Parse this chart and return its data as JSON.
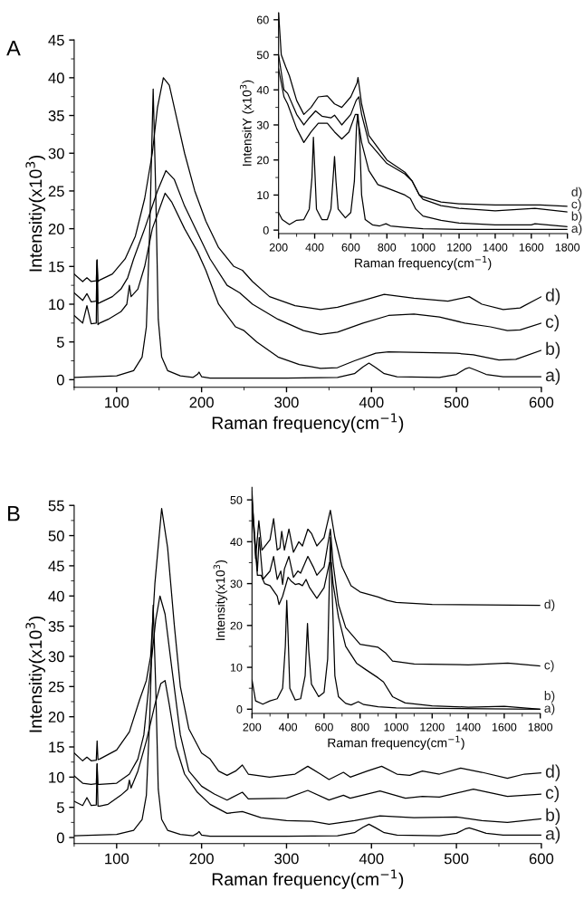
{
  "chart_data": [
    {
      "type": "line",
      "title": "A",
      "xlabel": "Raman frequency(cm$^{−1}$)",
      "ylabel": "Intensitiy(x10$^{3}$)",
      "xlim": [
        50,
        600
      ],
      "xticks": [
        100,
        200,
        300,
        400,
        500,
        600
      ],
      "ylim": [
        -1,
        45
      ],
      "yticks": [
        0,
        5,
        10,
        15,
        20,
        25,
        30,
        35,
        40,
        45
      ],
      "grid": false,
      "legend": false,
      "series": [
        {
          "name": "a)",
          "color": "#000000",
          "x": [
            50,
            100,
            120,
            130,
            135,
            139,
            143,
            146,
            149,
            153,
            160,
            175,
            190,
            195,
            197,
            200,
            210,
            300,
            360,
            380,
            390,
            397,
            405,
            415,
            430,
            480,
            500,
            510,
            515,
            522,
            535,
            555,
            600
          ],
          "values": [
            0.3,
            0.5,
            1.2,
            3,
            7,
            20,
            38.5,
            25,
            8,
            3,
            1.2,
            0.5,
            0.3,
            0.7,
            1.0,
            0.4,
            0.2,
            0.2,
            0.3,
            0.8,
            1.7,
            2.2,
            1.6,
            0.8,
            0.4,
            0.3,
            0.7,
            1.4,
            1.6,
            1.3,
            0.7,
            0.4,
            0.4
          ]
        },
        {
          "name": "b)",
          "color": "#000000",
          "x": [
            50,
            60,
            65,
            70,
            76,
            77,
            78,
            80,
            90,
            105,
            112,
            115,
            117,
            125,
            133,
            142,
            157,
            165,
            180,
            195,
            205,
            220,
            240,
            250,
            265,
            290,
            315,
            340,
            360,
            380,
            405,
            420,
            460,
            500,
            520,
            550,
            570,
            600
          ],
          "values": [
            8.5,
            7.5,
            9.8,
            7.4,
            7.5,
            15.8,
            7.3,
            7.5,
            8,
            9,
            10,
            12.5,
            11,
            12,
            15,
            20,
            24.7,
            23.5,
            20,
            17,
            14.5,
            10,
            7,
            6.5,
            5,
            3,
            2,
            1.5,
            1.6,
            2.5,
            3.5,
            3.7,
            3.6,
            3.5,
            3.3,
            2.6,
            2.7,
            3.9
          ]
        },
        {
          "name": "c)",
          "color": "#000000",
          "x": [
            50,
            60,
            65,
            70,
            76,
            77,
            78,
            80,
            95,
            105,
            113,
            120,
            133,
            148,
            158,
            168,
            180,
            195,
            210,
            230,
            245,
            260,
            290,
            320,
            340,
            360,
            390,
            420,
            450,
            480,
            510,
            540,
            560,
            575,
            600
          ],
          "values": [
            11.5,
            10.5,
            11.4,
            10.3,
            10.4,
            15.8,
            10.1,
            10.2,
            11,
            12,
            13.5,
            16,
            20,
            25,
            27.7,
            26.5,
            23,
            19.5,
            16,
            12.5,
            11.5,
            10,
            8,
            6.5,
            6,
            6.3,
            7.5,
            8.5,
            8.7,
            8.3,
            7.5,
            7,
            6.5,
            6.6,
            7.5
          ]
        },
        {
          "name": "d)",
          "color": "#000000",
          "x": [
            50,
            60,
            65,
            70,
            76,
            77,
            78,
            80,
            95,
            110,
            122,
            133,
            142,
            148,
            155,
            162,
            170,
            180,
            192,
            205,
            220,
            238,
            248,
            260,
            280,
            310,
            340,
            360,
            390,
            415,
            450,
            490,
            515,
            530,
            555,
            575,
            600
          ],
          "values": [
            14,
            13,
            13.5,
            13,
            13.1,
            15.9,
            13,
            13.2,
            14,
            16,
            19,
            24,
            30,
            36,
            40,
            39,
            35,
            30,
            25,
            21,
            17.5,
            15,
            14.5,
            13,
            11,
            9.8,
            9.3,
            9.6,
            10.5,
            11.3,
            10.8,
            10.4,
            11,
            10,
            9.3,
            9.5,
            11
          ]
        }
      ]
    },
    {
      "type": "line",
      "xlabel": "Raman frequency(cm$^{−1}$)",
      "ylabel": "IntensitY (x10$^{3}$)",
      "xlim": [
        200,
        1800
      ],
      "xticks": [
        200,
        400,
        600,
        800,
        1000,
        1200,
        1400,
        1600,
        1800
      ],
      "ylim": [
        -1,
        62
      ],
      "yticks": [
        0,
        10,
        20,
        30,
        40,
        50,
        60
      ],
      "grid": false,
      "legend": false,
      "series": [
        {
          "name": "a)",
          "color": "#000000",
          "x": [
            200,
            220,
            260,
            300,
            340,
            370,
            385,
            393,
            400,
            410,
            440,
            470,
            490,
            505,
            510,
            518,
            530,
            570,
            600,
            620,
            632,
            640,
            650,
            660,
            680,
            720,
            760,
            795,
            820,
            900,
            1000,
            1200,
            1800
          ],
          "values": [
            5,
            3,
            1.6,
            2.8,
            3,
            6,
            15,
            26.5,
            18,
            6,
            3,
            3,
            6,
            17,
            21,
            14,
            6,
            3.5,
            5,
            14,
            30,
            33,
            25,
            10,
            3,
            1.5,
            1.2,
            1.8,
            1.2,
            0.8,
            0.4,
            0.2,
            0.2
          ]
        },
        {
          "name": "b)",
          "color": "#000000",
          "x": [
            200,
            230,
            250,
            300,
            340,
            380,
            420,
            470,
            510,
            550,
            590,
            625,
            635,
            660,
            700,
            750,
            800,
            900,
            930,
            960,
            1000,
            1100,
            1200,
            1400,
            1600,
            1620,
            1800
          ],
          "values": [
            46,
            38,
            36,
            29,
            25,
            28,
            30.5,
            30.5,
            28,
            26,
            28,
            33,
            33,
            25,
            17,
            13,
            12,
            10,
            9,
            6,
            4,
            2.8,
            2,
            1.5,
            1.5,
            1.8,
            1.0
          ]
        },
        {
          "name": "c)",
          "color": "#000000",
          "x": [
            200,
            230,
            250,
            300,
            340,
            370,
            405,
            440,
            490,
            510,
            550,
            600,
            630,
            645,
            660,
            700,
            800,
            900,
            940,
            980,
            1000,
            1100,
            1200,
            1400,
            1620,
            1800
          ],
          "values": [
            50,
            40,
            39,
            33,
            30,
            32,
            34,
            32.5,
            32,
            32.8,
            30,
            33,
            37,
            38,
            33,
            25,
            19,
            16,
            14,
            10,
            8.8,
            7,
            6.2,
            5.5,
            6.2,
            5.2
          ]
        },
        {
          "name": "d)",
          "color": "#000000",
          "x": [
            200,
            215,
            240,
            260,
            300,
            340,
            380,
            420,
            470,
            510,
            550,
            600,
            635,
            640,
            660,
            700,
            800,
            900,
            940,
            980,
            1000,
            1100,
            1200,
            1400,
            1650,
            1800
          ],
          "values": [
            62,
            50,
            46.5,
            44,
            37,
            33,
            35,
            38,
            38.3,
            36,
            35,
            38,
            42,
            43.5,
            36,
            27,
            20,
            16.5,
            14,
            10,
            9.5,
            8,
            7.5,
            7.2,
            7.2,
            6.8
          ]
        }
      ]
    },
    {
      "type": "line",
      "title": "B",
      "xlabel": "Raman frequency(cm$^{−1}$)",
      "ylabel": "Intensitiy(x10$^{3}$)",
      "xlim": [
        50,
        600
      ],
      "xticks": [
        100,
        200,
        300,
        400,
        500,
        600
      ],
      "ylim": [
        -1,
        55
      ],
      "yticks": [
        0,
        5,
        10,
        15,
        20,
        25,
        30,
        35,
        40,
        45,
        50,
        55
      ],
      "grid": false,
      "legend": false,
      "series": [
        {
          "name": "a)",
          "color": "#000000",
          "x": [
            50,
            100,
            120,
            130,
            135,
            139,
            143,
            146,
            149,
            153,
            160,
            175,
            190,
            195,
            197,
            200,
            210,
            300,
            360,
            380,
            390,
            397,
            405,
            415,
            430,
            480,
            500,
            510,
            515,
            522,
            535,
            555,
            600
          ],
          "values": [
            0.3,
            0.5,
            1.2,
            3,
            7,
            20,
            38.5,
            25,
            8,
            3,
            1.2,
            0.5,
            0.3,
            0.7,
            1.0,
            0.4,
            0.2,
            0.2,
            0.3,
            0.8,
            1.7,
            2.2,
            1.6,
            0.8,
            0.4,
            0.3,
            0.7,
            1.4,
            1.6,
            1.3,
            0.7,
            0.4,
            0.4
          ]
        },
        {
          "name": "b)",
          "color": "#000000",
          "x": [
            50,
            60,
            65,
            70,
            76,
            77,
            78,
            80,
            90,
            105,
            113,
            115,
            117,
            125,
            135,
            145,
            152,
            157,
            162,
            170,
            180,
            195,
            210,
            230,
            248,
            270,
            300,
            330,
            350,
            380,
            410,
            450,
            500,
            530,
            560,
            600
          ],
          "values": [
            6,
            5.3,
            6.6,
            5.3,
            5.4,
            12.2,
            5.2,
            5.2,
            5.5,
            7,
            8,
            9.5,
            8.2,
            11,
            16,
            22,
            25.5,
            26,
            22,
            15,
            10.5,
            7.5,
            5.5,
            4,
            4.3,
            3.3,
            2.8,
            2.7,
            2.2,
            2.8,
            3.6,
            3.3,
            3.4,
            2.8,
            2.5,
            3.1
          ]
        },
        {
          "name": "c)",
          "color": "#000000",
          "x": [
            50,
            60,
            70,
            76,
            77,
            78,
            80,
            100,
            115,
            125,
            132,
            140,
            146,
            151,
            157,
            165,
            175,
            185,
            200,
            215,
            230,
            248,
            255,
            300,
            325,
            350,
            367,
            375,
            410,
            440,
            460,
            480,
            520,
            560,
            600
          ],
          "values": [
            10.2,
            9,
            8.8,
            8.9,
            12.2,
            8.8,
            8.8,
            9,
            10.5,
            13,
            17,
            28,
            36,
            40,
            37,
            28,
            17,
            11,
            8.5,
            7.2,
            6.2,
            7.5,
            6.4,
            6.5,
            7.8,
            6.2,
            7,
            6.5,
            7.7,
            6.5,
            6.8,
            6.7,
            8,
            6.8,
            7.2
          ]
        },
        {
          "name": "d)",
          "color": "#000000",
          "x": [
            50,
            60,
            65,
            70,
            76,
            77,
            78,
            80,
            100,
            115,
            127,
            135,
            140,
            145,
            153,
            160,
            168,
            175,
            185,
            200,
            210,
            220,
            230,
            240,
            248,
            255,
            280,
            310,
            325,
            340,
            350,
            367,
            375,
            395,
            412,
            430,
            445,
            460,
            480,
            505,
            530,
            560,
            580,
            600
          ],
          "values": [
            14,
            12.7,
            13.3,
            12.7,
            12.8,
            16,
            12.9,
            13,
            14.5,
            17.5,
            22.8,
            26,
            30,
            42,
            54.5,
            48,
            35,
            25,
            18,
            14,
            13,
            11,
            10.3,
            11,
            12,
            10.5,
            10,
            10.5,
            11.8,
            10.5,
            9.6,
            10.8,
            10,
            11,
            11.8,
            10.5,
            10.3,
            11,
            10.5,
            11.5,
            10.8,
            9.8,
            10.5,
            10.7
          ]
        }
      ]
    },
    {
      "type": "line",
      "xlabel": "Raman frequency(cm$^{−1}$)",
      "ylabel": "Intensity(x10$^{3}$)",
      "xlim": [
        200,
        1800
      ],
      "xticks": [
        200,
        400,
        600,
        800,
        1000,
        1200,
        1400,
        1600,
        1800
      ],
      "ylim": [
        -1,
        53
      ],
      "yticks": [
        0,
        10,
        20,
        30,
        40,
        50
      ],
      "grid": false,
      "legend": false,
      "series": [
        {
          "name": "a)",
          "color": "#000000",
          "x": [
            200,
            220,
            260,
            300,
            340,
            370,
            385,
            393,
            400,
            410,
            440,
            470,
            495,
            508,
            515,
            530,
            570,
            600,
            620,
            635,
            645,
            660,
            680,
            720,
            750,
            790,
            820,
            900,
            1000,
            1800
          ],
          "values": [
            7,
            2,
            1.2,
            2,
            2.5,
            5,
            15,
            26,
            18,
            5,
            2.2,
            2.5,
            8,
            20.5,
            14,
            6,
            3,
            4,
            12,
            41,
            28,
            8,
            3,
            1.4,
            1,
            1.8,
            1.1,
            0.6,
            0.3,
            0
          ]
        },
        {
          "name": "b)",
          "color": "#000000",
          "x": [
            200,
            230,
            250,
            270,
            300,
            340,
            350,
            370,
            400,
            420,
            440,
            460,
            480,
            500,
            520,
            560,
            600,
            630,
            640,
            650,
            680,
            720,
            780,
            830,
            900,
            930,
            980,
            1050,
            1200,
            1400,
            1600,
            1800
          ],
          "values": [
            48,
            32,
            32,
            30,
            29.5,
            27,
            25,
            27,
            31.5,
            30.5,
            29.8,
            30,
            29.5,
            31,
            29,
            26.5,
            29,
            35,
            35,
            30,
            22,
            15,
            11,
            9.5,
            7.5,
            6.5,
            3,
            1.5,
            0.8,
            0.5,
            0.7,
            0
          ]
        },
        {
          "name": "c)",
          "color": "#000000",
          "x": [
            200,
            230,
            240,
            260,
            300,
            320,
            340,
            360,
            370,
            380,
            405,
            430,
            455,
            470,
            510,
            540,
            560,
            600,
            635,
            650,
            680,
            720,
            800,
            900,
            940,
            980,
            1100,
            1400,
            1620,
            1800
          ],
          "values": [
            50,
            33,
            41,
            31,
            33,
            36.5,
            31,
            33,
            29.8,
            33.5,
            36.5,
            31.5,
            33,
            32.5,
            36.5,
            34,
            32,
            34,
            43,
            35,
            25,
            19.5,
            15.5,
            14.8,
            13.5,
            11.5,
            10.8,
            10.6,
            11,
            10.3
          ]
        },
        {
          "name": "d)",
          "color": "#000000",
          "x": [
            200,
            220,
            238,
            255,
            300,
            320,
            340,
            355,
            365,
            380,
            405,
            430,
            460,
            480,
            510,
            530,
            560,
            580,
            600,
            635,
            660,
            700,
            750,
            800,
            900,
            950,
            1000,
            1200,
            1800
          ],
          "values": [
            52,
            36,
            45,
            38,
            40.5,
            45.5,
            38,
            38.5,
            42.5,
            38,
            43,
            37.5,
            40,
            39,
            43,
            42,
            39,
            40,
            41,
            47.5,
            41,
            34,
            29.5,
            28,
            26.8,
            26,
            25.5,
            25,
            24.8
          ]
        }
      ]
    }
  ]
}
